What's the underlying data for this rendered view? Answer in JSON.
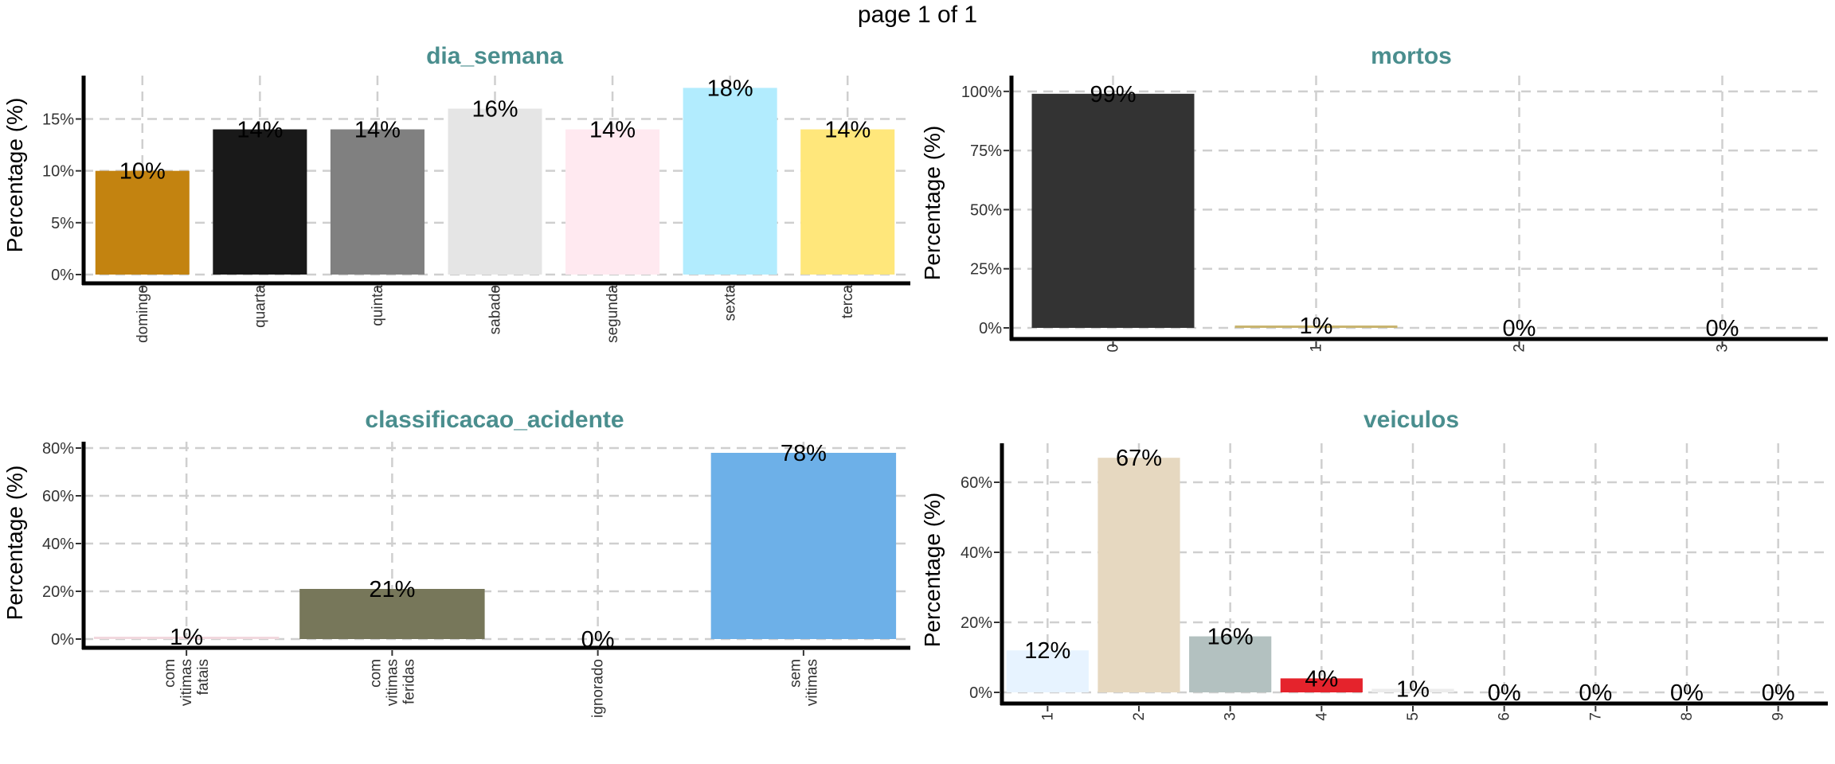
{
  "header": {
    "page_label": "page 1 of 1"
  },
  "chart_data": [
    {
      "type": "bar",
      "title": "dia_semana",
      "ylabel": "Percentage (%)",
      "categories": [
        "domingo",
        "quarta",
        "quinta",
        "sabado",
        "segunda",
        "sexta",
        "terca"
      ],
      "values": [
        10,
        14,
        14,
        16,
        14,
        18,
        14
      ],
      "labels": [
        "10%",
        "14%",
        "14%",
        "16%",
        "14%",
        "18%",
        "14%"
      ],
      "colors": [
        "#c38310",
        "#191919",
        "#808080",
        "#e5e5e5",
        "#ffe9f0",
        "#b2ecfe",
        "#ffe77b"
      ],
      "ylim": [
        0,
        18.8
      ],
      "yticks": [
        0,
        5,
        10,
        15
      ],
      "ytick_labels": [
        "0%",
        "5%",
        "10%",
        "15%"
      ],
      "grid": true
    },
    {
      "type": "bar",
      "title": "mortos",
      "ylabel": "Percentage (%)",
      "categories": [
        "0",
        "1",
        "2",
        "3"
      ],
      "values": [
        99,
        1,
        0,
        0
      ],
      "labels": [
        "99%",
        "1%",
        "0%",
        "0%"
      ],
      "colors": [
        "#333333",
        "#c8b46e",
        "#ffffff",
        "#ffffff"
      ],
      "ylim": [
        0,
        105
      ],
      "yticks": [
        0,
        25,
        50,
        75,
        100
      ],
      "ytick_labels": [
        "0%",
        "25%",
        "50%",
        "75%",
        "100%"
      ],
      "grid": true
    },
    {
      "type": "bar",
      "title": "classificacao_acidente",
      "ylabel": "Percentage (%)",
      "categories": [
        "com\nvitimas\nfatais",
        "com\nvitimas\nferidas",
        "ignorado",
        "sem\nvitimas"
      ],
      "values": [
        1,
        21,
        0,
        78
      ],
      "labels": [
        "1%",
        "21%",
        "0%",
        "78%"
      ],
      "colors": [
        "#f2d8de",
        "#77775a",
        "#ffffff",
        "#6db0e8"
      ],
      "ylim": [
        0,
        81
      ],
      "yticks": [
        0,
        20,
        40,
        60,
        80
      ],
      "ytick_labels": [
        "0%",
        "20%",
        "40%",
        "60%",
        "80%"
      ],
      "grid": true
    },
    {
      "type": "bar",
      "title": "veiculos",
      "ylabel": "Percentage (%)",
      "categories": [
        "1",
        "2",
        "3",
        "4",
        "5",
        "6",
        "7",
        "8",
        "9"
      ],
      "values": [
        12,
        67,
        16,
        4,
        1,
        0,
        0,
        0,
        0
      ],
      "labels": [
        "12%",
        "67%",
        "16%",
        "4%",
        "1%",
        "0%",
        "0%",
        "0%",
        "0%"
      ],
      "colors": [
        "#e7f3ff",
        "#e6d8c0",
        "#b3c1c0",
        "#e5232c",
        "#ececec",
        "#ffffff",
        "#ffffff",
        "#ffffff",
        "#ffffff"
      ],
      "ylim": [
        0,
        70
      ],
      "yticks": [
        0,
        20,
        40,
        60
      ],
      "ytick_labels": [
        "0%",
        "20%",
        "40%",
        "60%"
      ],
      "grid": true
    }
  ]
}
